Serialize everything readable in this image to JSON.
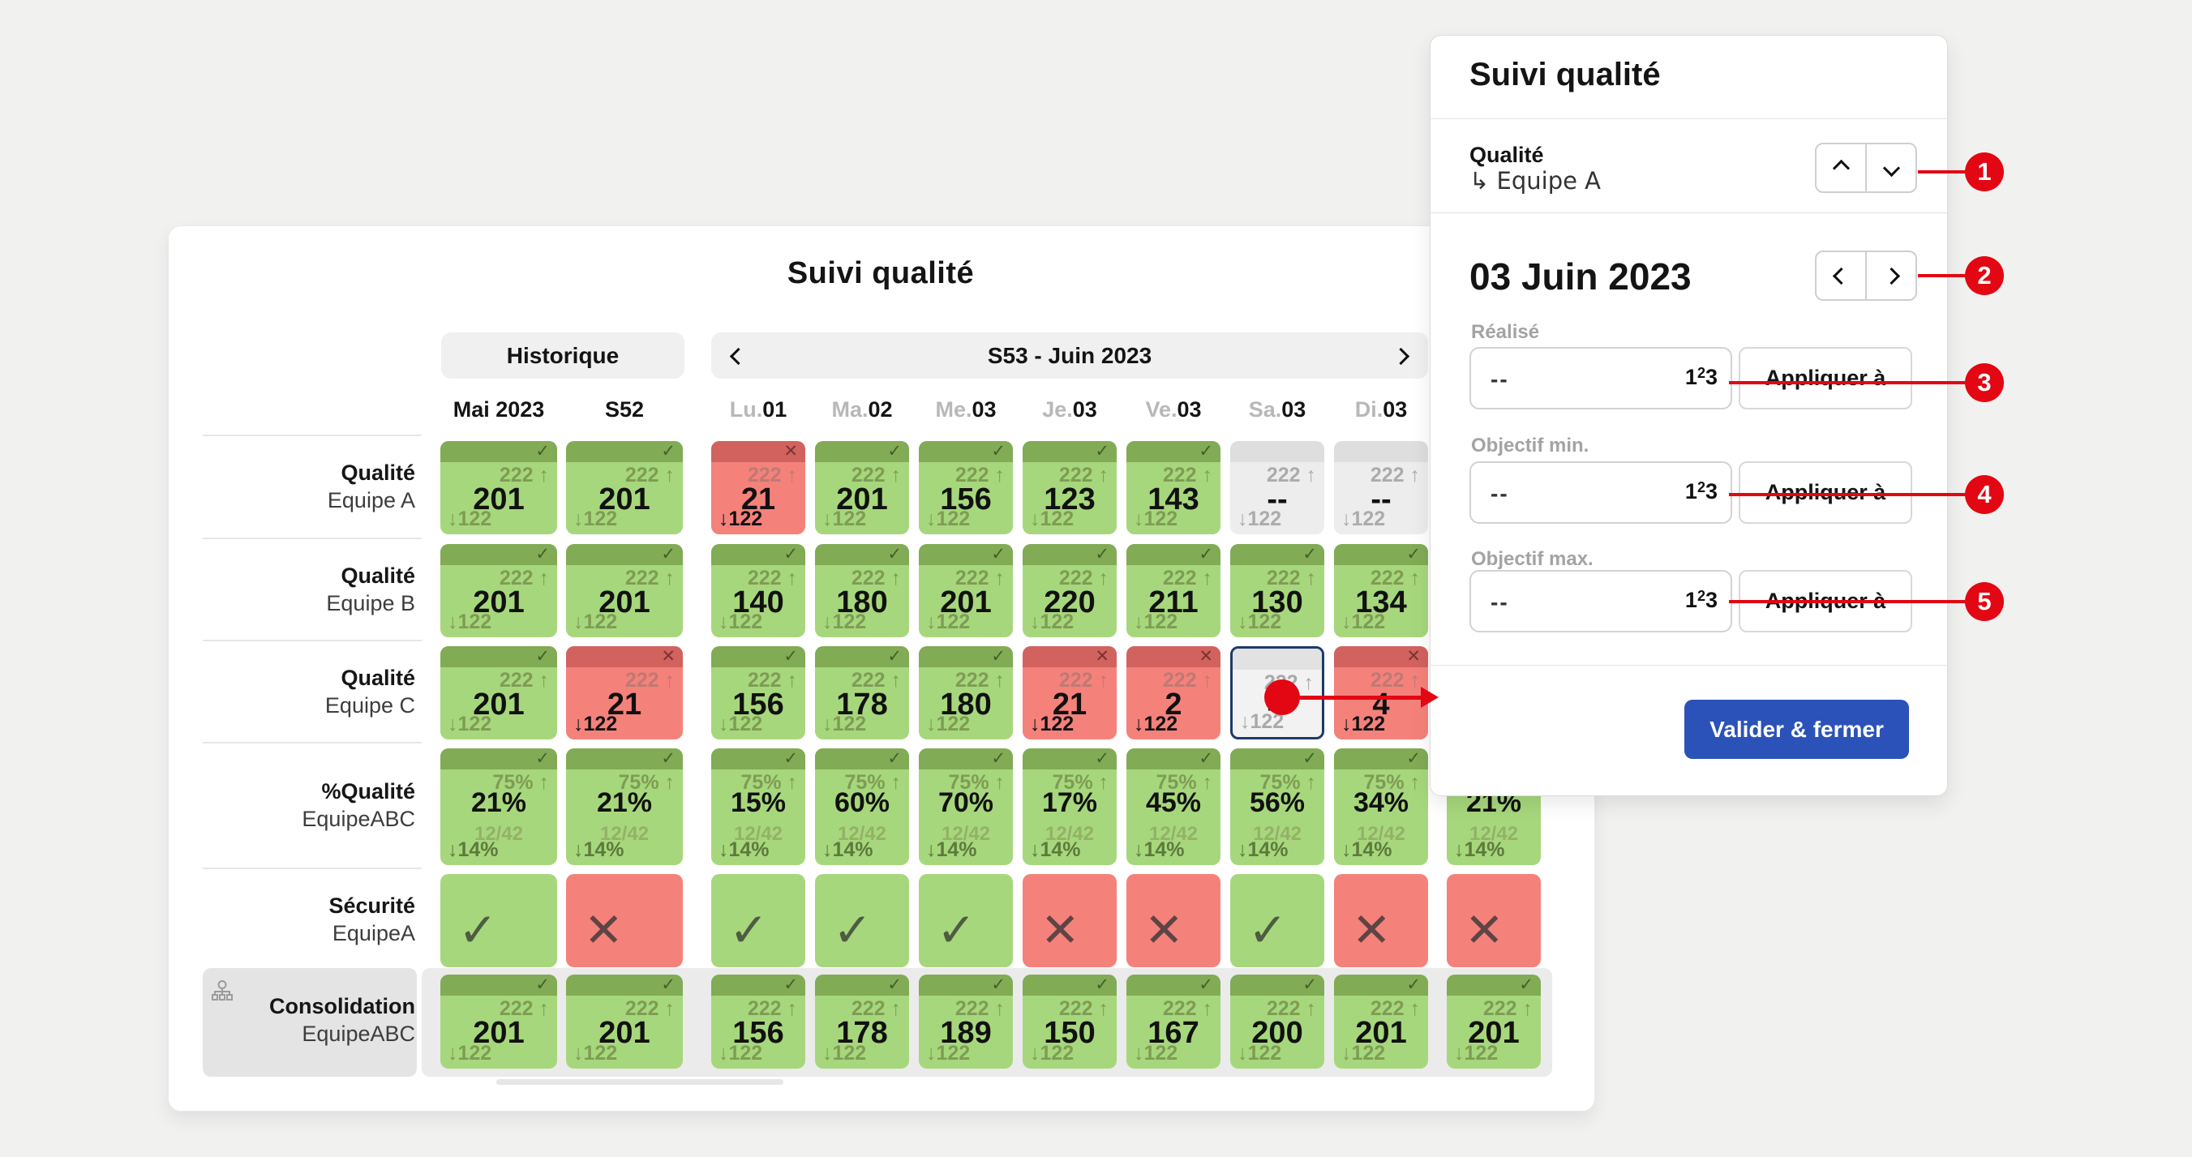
{
  "colors": {
    "accent_red": "#e30613",
    "green_body": "#a7d77c",
    "green_band": "#82ab55",
    "red_body": "#f5817b",
    "red_band": "#d2625e",
    "gray_body": "#ededed",
    "gray_band": "#dedede",
    "selected_border": "#1d3a6b",
    "primary_button": "#2b52b8"
  },
  "table": {
    "title": "Suivi qualité",
    "history_label": "Historique",
    "week_label": "S53 - Juin 2023",
    "columns": [
      {
        "prefix": "",
        "header": "Mai 2023"
      },
      {
        "prefix": "",
        "header": "S52"
      },
      {
        "prefix": "Lu.",
        "header": "01"
      },
      {
        "prefix": "Ma.",
        "header": "02"
      },
      {
        "prefix": "Me.",
        "header": "03"
      },
      {
        "prefix": "Je.",
        "header": "03"
      },
      {
        "prefix": "Ve.",
        "header": "03"
      },
      {
        "prefix": "Sa.",
        "header": "03"
      },
      {
        "prefix": "Di.",
        "header": "03"
      },
      {
        "prefix": "",
        "header": ""
      }
    ],
    "rows": [
      {
        "label": "Qualité",
        "sublabel": "Equipe A",
        "kind": "metric",
        "cells": [
          {
            "s": "green",
            "i": "check",
            "o": "222 ↑",
            "v": "201",
            "d": "↓122"
          },
          {
            "s": "green",
            "i": "check",
            "o": "222 ↑",
            "v": "201",
            "d": "↓122"
          },
          {
            "s": "red",
            "i": "cross",
            "o": "222 ↑",
            "v": "21",
            "d": "↓122",
            "strong": true
          },
          {
            "s": "green",
            "i": "check",
            "o": "222 ↑",
            "v": "201",
            "d": "↓122"
          },
          {
            "s": "green",
            "i": "check",
            "o": "222 ↑",
            "v": "156",
            "d": "↓122"
          },
          {
            "s": "green",
            "i": "check",
            "o": "222 ↑",
            "v": "123",
            "d": "↓122"
          },
          {
            "s": "green",
            "i": "check",
            "o": "222 ↑",
            "v": "143",
            "d": "↓122"
          },
          {
            "s": "gray",
            "i": "",
            "o": "222 ↑",
            "v": "--",
            "d": "↓122"
          },
          {
            "s": "gray",
            "i": "",
            "o": "222 ↑",
            "v": "--",
            "d": "↓122"
          },
          null
        ]
      },
      {
        "label": "Qualité",
        "sublabel": "Equipe B",
        "kind": "metric",
        "cells": [
          {
            "s": "green",
            "i": "check",
            "o": "222 ↑",
            "v": "201",
            "d": "↓122"
          },
          {
            "s": "green",
            "i": "check",
            "o": "222 ↑",
            "v": "201",
            "d": "↓122"
          },
          {
            "s": "green",
            "i": "check",
            "o": "222 ↑",
            "v": "140",
            "d": "↓122"
          },
          {
            "s": "green",
            "i": "check",
            "o": "222 ↑",
            "v": "180",
            "d": "↓122"
          },
          {
            "s": "green",
            "i": "check",
            "o": "222 ↑",
            "v": "201",
            "d": "↓122"
          },
          {
            "s": "green",
            "i": "check",
            "o": "222 ↑",
            "v": "220",
            "d": "↓122"
          },
          {
            "s": "green",
            "i": "check",
            "o": "222 ↑",
            "v": "211",
            "d": "↓122"
          },
          {
            "s": "green",
            "i": "check",
            "o": "222 ↑",
            "v": "130",
            "d": "↓122"
          },
          {
            "s": "green",
            "i": "check",
            "o": "222 ↑",
            "v": "134",
            "d": "↓122"
          },
          null
        ]
      },
      {
        "label": "Qualité",
        "sublabel": "Equipe C",
        "kind": "metric",
        "cells": [
          {
            "s": "green",
            "i": "check",
            "o": "222 ↑",
            "v": "201",
            "d": "↓122"
          },
          {
            "s": "red",
            "i": "cross",
            "o": "222 ↑",
            "v": "21",
            "d": "↓122",
            "strong": true
          },
          {
            "s": "green",
            "i": "check",
            "o": "222 ↑",
            "v": "156",
            "d": "↓122"
          },
          {
            "s": "green",
            "i": "check",
            "o": "222 ↑",
            "v": "178",
            "d": "↓122"
          },
          {
            "s": "green",
            "i": "check",
            "o": "222 ↑",
            "v": "180",
            "d": "↓122"
          },
          {
            "s": "red",
            "i": "cross",
            "o": "222 ↑",
            "v": "21",
            "d": "↓122",
            "strong": true
          },
          {
            "s": "red",
            "i": "cross",
            "o": "222 ↑",
            "v": "2",
            "d": "↓122",
            "strong": true
          },
          {
            "s": "sel",
            "i": "",
            "o": "222 ↑",
            "v": "--",
            "d": "↓122",
            "dot": true
          },
          {
            "s": "red",
            "i": "cross",
            "o": "222 ↑",
            "v": "4",
            "d": "↓122",
            "strong": true
          },
          null
        ]
      },
      {
        "label": "%Qualité",
        "sublabel": "EquipeABC",
        "kind": "percent",
        "cells": [
          {
            "s": "green",
            "i": "check",
            "o": "75% ↑",
            "v": "21%",
            "sub": "12/42",
            "d": "↓14%"
          },
          {
            "s": "green",
            "i": "check",
            "o": "75% ↑",
            "v": "21%",
            "sub": "12/42",
            "d": "↓14%"
          },
          {
            "s": "green",
            "i": "check",
            "o": "75% ↑",
            "v": "15%",
            "sub": "12/42",
            "d": "↓14%"
          },
          {
            "s": "green",
            "i": "check",
            "o": "75% ↑",
            "v": "60%",
            "sub": "12/42",
            "d": "↓14%"
          },
          {
            "s": "green",
            "i": "check",
            "o": "75% ↑",
            "v": "70%",
            "sub": "12/42",
            "d": "↓14%"
          },
          {
            "s": "green",
            "i": "check",
            "o": "75% ↑",
            "v": "17%",
            "sub": "12/42",
            "d": "↓14%"
          },
          {
            "s": "green",
            "i": "check",
            "o": "75% ↑",
            "v": "45%",
            "sub": "12/42",
            "d": "↓14%"
          },
          {
            "s": "green",
            "i": "check",
            "o": "75% ↑",
            "v": "56%",
            "sub": "12/42",
            "d": "↓14%"
          },
          {
            "s": "green",
            "i": "check",
            "o": "75% ↑",
            "v": "34%",
            "sub": "12/42",
            "d": "↓14%"
          },
          {
            "s": "green",
            "i": "",
            "o": "",
            "v": "21%",
            "sub": "12/42",
            "d": "↓14%"
          }
        ]
      },
      {
        "label": "Sécurité",
        "sublabel": "EquipeA",
        "kind": "status",
        "cells": [
          {
            "s": "green",
            "i": "check"
          },
          {
            "s": "red",
            "i": "cross"
          },
          {
            "s": "green",
            "i": "check"
          },
          {
            "s": "green",
            "i": "check"
          },
          {
            "s": "green",
            "i": "check"
          },
          {
            "s": "red",
            "i": "cross"
          },
          {
            "s": "red",
            "i": "cross"
          },
          {
            "s": "green",
            "i": "check"
          },
          {
            "s": "red",
            "i": "cross"
          },
          {
            "s": "red",
            "i": "cross"
          }
        ]
      },
      {
        "label": "Consolidation",
        "sublabel": "EquipeABC",
        "kind": "metric",
        "consolidated": true,
        "cells": [
          {
            "s": "green",
            "i": "check",
            "o": "222 ↑",
            "v": "201",
            "d": "↓122"
          },
          {
            "s": "green",
            "i": "check",
            "o": "222 ↑",
            "v": "201",
            "d": "↓122"
          },
          {
            "s": "green",
            "i": "check",
            "o": "222 ↑",
            "v": "156",
            "d": "↓122"
          },
          {
            "s": "green",
            "i": "check",
            "o": "222 ↑",
            "v": "178",
            "d": "↓122"
          },
          {
            "s": "green",
            "i": "check",
            "o": "222 ↑",
            "v": "189",
            "d": "↓122"
          },
          {
            "s": "green",
            "i": "check",
            "o": "222 ↑",
            "v": "150",
            "d": "↓122"
          },
          {
            "s": "green",
            "i": "check",
            "o": "222 ↑",
            "v": "167",
            "d": "↓122"
          },
          {
            "s": "green",
            "i": "check",
            "o": "222 ↑",
            "v": "200",
            "d": "↓122"
          },
          {
            "s": "green",
            "i": "check",
            "o": "222 ↑",
            "v": "201",
            "d": "↓122"
          },
          {
            "s": "green",
            "i": "check",
            "o": "222 ↑",
            "v": "201",
            "d": "↓122"
          }
        ]
      }
    ]
  },
  "panel": {
    "title": "Suivi qualité",
    "metric": {
      "label": "Qualité",
      "team_arrow": "↳",
      "team": "Equipe A"
    },
    "date_label": "03 Juin 2023",
    "fields": [
      {
        "label": "Réalisé",
        "value": "--"
      },
      {
        "label": "Objectif min.",
        "value": "--"
      },
      {
        "label": "Objectif max.",
        "value": "--"
      }
    ],
    "apply_label": "Appliquer à",
    "numeric_icon": {
      "n1": "1",
      "n2": "2",
      "n3": "3"
    },
    "submit_label": "Valider & fermer"
  },
  "annotations": {
    "badges": [
      "1",
      "2",
      "3",
      "4",
      "5"
    ]
  }
}
